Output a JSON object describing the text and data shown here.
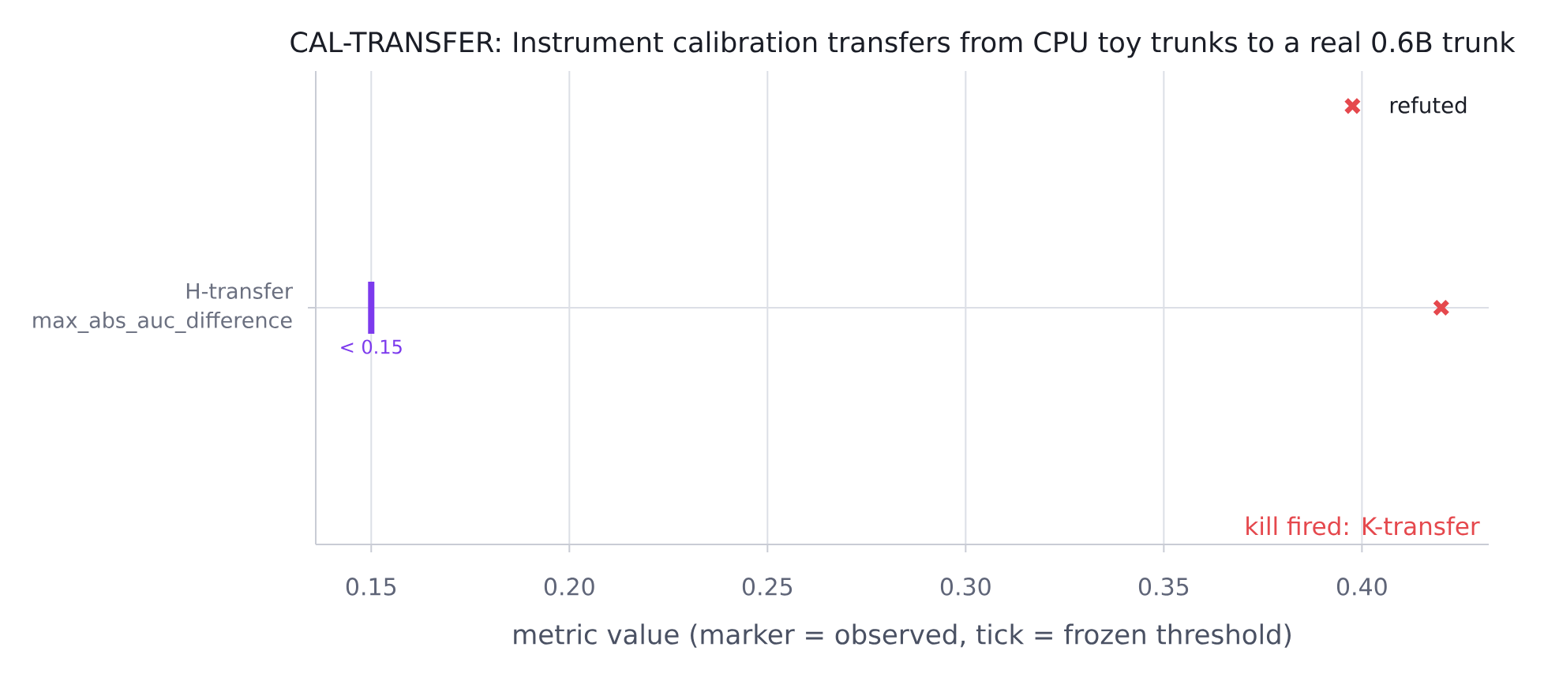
{
  "chart_data": {
    "type": "scatter",
    "orientation": "horizontal",
    "title": "CAL-TRANSFER: Instrument calibration transfers from CPU toy trunks to a real 0.6B trunk",
    "xlabel": "metric value (marker = observed, tick = frozen threshold)",
    "categories": [
      "H-transfer\nmax_abs_auc_difference"
    ],
    "series": [
      {
        "name": "refuted",
        "color": "#e5484d",
        "values": [
          0.42
        ],
        "marker": "cross"
      }
    ],
    "xlim": [
      0.136,
      0.432
    ],
    "xticks": [
      0.15,
      {
        "value": 0.2,
        "label": "0.20"
      },
      0.25,
      {
        "value": 0.3,
        "label": "0.30"
      },
      0.35,
      {
        "value": 0.4,
        "label": "0.40"
      }
    ],
    "grid": true,
    "legend": "top right",
    "ref_lines": [
      {
        "axis": "x",
        "value": 0.15,
        "label": "< 0.15",
        "color": "#7c3aed"
      }
    ],
    "annotations": [
      "kill fired: K-transfer"
    ]
  }
}
